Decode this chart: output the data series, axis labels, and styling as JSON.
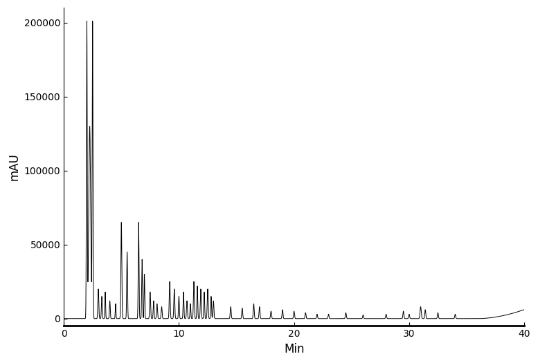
{
  "title": "",
  "xlabel": "Min",
  "ylabel": "mAU",
  "xlim": [
    0,
    40
  ],
  "ylim": [
    -5000,
    210000
  ],
  "yticks": [
    0,
    50000,
    100000,
    150000,
    200000
  ],
  "xticks": [
    0,
    10,
    20,
    30,
    40
  ],
  "line_color": "#000000",
  "line_width": 0.7,
  "background_color": "#ffffff",
  "xlabel_fontsize": 12,
  "ylabel_fontsize": 12,
  "tick_fontsize": 10
}
